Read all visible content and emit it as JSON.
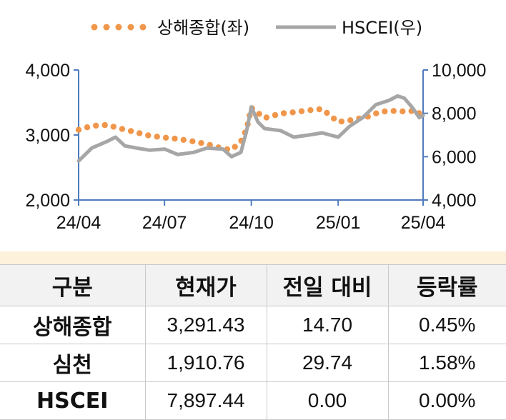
{
  "chart_data": {
    "type": "line",
    "legend_position": "top",
    "series": [
      {
        "name": "상해종합(좌)",
        "axis": "left",
        "style": "dotted",
        "color": "#f0964a",
        "x": [
          "2024-04-01",
          "2024-04-15",
          "2024-05-01",
          "2024-05-15",
          "2024-06-01",
          "2024-06-15",
          "2024-07-01",
          "2024-07-15",
          "2024-08-01",
          "2024-08-15",
          "2024-09-01",
          "2024-09-10",
          "2024-09-20",
          "2024-09-26",
          "2024-10-01",
          "2024-10-15",
          "2024-11-01",
          "2024-11-15",
          "2024-12-01",
          "2024-12-15",
          "2025-01-01",
          "2025-01-15",
          "2025-02-01",
          "2025-02-15",
          "2025-03-01",
          "2025-03-15",
          "2025-03-25",
          "2025-04-01"
        ],
        "values": [
          3080,
          3140,
          3155,
          3100,
          3040,
          2990,
          2960,
          2940,
          2900,
          2860,
          2790,
          2770,
          2900,
          3090,
          3420,
          3260,
          3330,
          3350,
          3380,
          3400,
          3200,
          3230,
          3280,
          3360,
          3370,
          3360,
          3380,
          3270
        ]
      },
      {
        "name": "HSCEI(우)",
        "axis": "right",
        "style": "solid",
        "color": "#a6a6a6",
        "x": [
          "2024-04-01",
          "2024-04-15",
          "2024-05-01",
          "2024-05-10",
          "2024-05-20",
          "2024-06-01",
          "2024-06-15",
          "2024-07-01",
          "2024-07-15",
          "2024-08-01",
          "2024-08-15",
          "2024-09-01",
          "2024-09-10",
          "2024-09-20",
          "2024-09-26",
          "2024-10-01",
          "2024-10-08",
          "2024-10-15",
          "2024-11-01",
          "2024-11-15",
          "2024-12-01",
          "2024-12-15",
          "2025-01-01",
          "2025-01-13",
          "2025-01-27",
          "2025-02-10",
          "2025-02-24",
          "2025-03-05",
          "2025-03-12",
          "2025-03-20",
          "2025-03-28",
          "2025-04-01"
        ],
        "values": [
          5800,
          6400,
          6700,
          6900,
          6500,
          6400,
          6300,
          6350,
          6100,
          6200,
          6400,
          6350,
          6000,
          6200,
          7200,
          8300,
          7600,
          7300,
          7200,
          6900,
          7000,
          7100,
          6900,
          7400,
          7800,
          8400,
          8600,
          8800,
          8700,
          8300,
          7800,
          7900
        ]
      }
    ],
    "x_ticks": [
      "24/04",
      "24/07",
      "24/10",
      "25/01",
      "25/04"
    ],
    "x_tick_dates": [
      "2024-04-01",
      "2024-07-01",
      "2024-10-01",
      "2025-01-01",
      "2025-04-01"
    ],
    "y_left": {
      "ticks": [
        "2,000",
        "3,000",
        "4,000"
      ],
      "tick_values": [
        2000,
        3000,
        4000
      ],
      "range": [
        2000,
        4000
      ]
    },
    "y_right": {
      "ticks": [
        "4,000",
        "6,000",
        "8,000",
        "10,000"
      ],
      "tick_values": [
        4000,
        6000,
        8000,
        10000
      ],
      "range": [
        4000,
        10000
      ]
    },
    "axis_color": "#4f7bbd",
    "grid": false
  },
  "table": {
    "headers": [
      "구분",
      "현재가",
      "전일 대비",
      "등락률"
    ],
    "rows": [
      {
        "name": "상해종합",
        "price": "3,291.43",
        "change": "14.70",
        "rate": "0.45%"
      },
      {
        "name": "심천",
        "price": "1,910.76",
        "change": "29.74",
        "rate": "1.58%"
      },
      {
        "name": "HSCEI",
        "price": "7,897.44",
        "change": "0.00",
        "rate": "0.00%"
      }
    ]
  }
}
